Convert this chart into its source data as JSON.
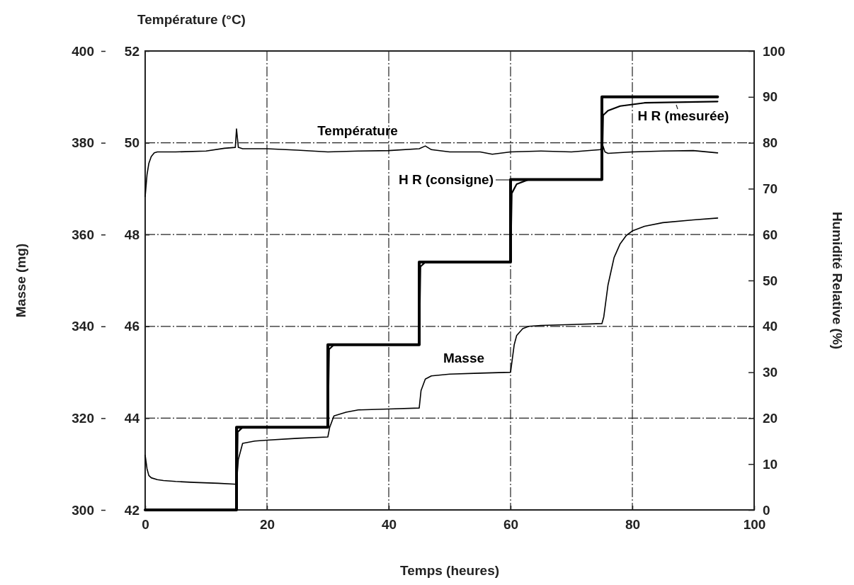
{
  "chart_data": {
    "type": "line",
    "xlabel": "Temps (heures)",
    "ylabel": "Masse  (mg)",
    "y2label": "Humidité Relative (%)",
    "y3label": "Température (°C)",
    "xlim": [
      0,
      100
    ],
    "xticks": [
      0,
      20,
      40,
      60,
      80,
      100
    ],
    "ylim": [
      300,
      400
    ],
    "yticks": [
      300,
      320,
      340,
      360,
      380,
      400
    ],
    "y2lim": [
      0,
      100
    ],
    "y2ticks": [
      0,
      10,
      20,
      30,
      40,
      50,
      60,
      70,
      80,
      90,
      100
    ],
    "y3lim": [
      42,
      52
    ],
    "y3ticks": [
      42,
      44,
      46,
      48,
      50,
      52
    ],
    "grid": true,
    "line_style": "solid",
    "series": [
      {
        "name": "Température",
        "color": "#000000",
        "axis": "y3",
        "x": [
          0,
          0.3,
          0.6,
          1,
          1.5,
          2,
          5,
          10,
          13,
          14.8,
          15,
          15.3,
          16,
          20,
          25,
          30,
          35,
          40,
          45,
          46,
          47,
          50,
          55,
          57,
          60,
          65,
          70,
          74.8,
          75,
          75.5,
          76,
          80,
          85,
          90,
          94
        ],
        "values": [
          48.83,
          49.3,
          49.55,
          49.7,
          49.78,
          49.8,
          49.8,
          49.82,
          49.88,
          49.9,
          50.3,
          49.9,
          49.87,
          49.87,
          49.84,
          49.8,
          49.82,
          49.83,
          49.87,
          49.93,
          49.85,
          49.8,
          49.8,
          49.75,
          49.8,
          49.82,
          49.8,
          49.85,
          50,
          49.8,
          49.77,
          49.8,
          49.82,
          49.83,
          49.78
        ]
      },
      {
        "name": "H R (consigne)",
        "color": "#000000",
        "axis": "y2",
        "x": [
          0,
          15,
          15,
          30,
          30,
          45,
          45,
          60,
          60,
          75,
          75,
          94
        ],
        "values": [
          0,
          0,
          18,
          18,
          36,
          36,
          54,
          54,
          72,
          72,
          90,
          90
        ]
      },
      {
        "name": "H R (mesurée)",
        "color": "#000000",
        "axis": "y2",
        "x": [
          0,
          15,
          15.2,
          16,
          30,
          30.2,
          31,
          45,
          45.2,
          46,
          60,
          60.2,
          61,
          63,
          75,
          75.2,
          76,
          78,
          82,
          94
        ],
        "values": [
          0,
          0,
          17,
          18,
          18,
          35,
          36,
          36,
          53,
          54,
          54,
          69,
          71,
          72,
          72,
          86,
          87,
          88,
          88.7,
          89
        ]
      },
      {
        "name": "Masse",
        "color": "#000000",
        "axis": "y",
        "x": [
          0,
          0.3,
          0.6,
          1,
          2,
          3,
          5,
          8,
          12,
          15,
          15.3,
          16,
          18,
          20,
          25,
          30,
          30.3,
          31,
          33,
          35,
          40,
          45,
          45.3,
          46,
          47,
          50,
          55,
          60,
          60.3,
          60.6,
          61,
          62,
          63,
          65,
          70,
          75,
          75.3,
          75.7,
          76,
          76.5,
          77,
          78,
          79,
          80,
          82,
          85,
          90,
          94
        ],
        "values": [
          311.9,
          309,
          307.5,
          307,
          306.6,
          306.4,
          306.2,
          306,
          305.8,
          305.6,
          311,
          314.5,
          315,
          315.2,
          315.6,
          315.9,
          318,
          320.5,
          321.3,
          321.8,
          322,
          322.2,
          326,
          328.5,
          329.2,
          329.6,
          329.8,
          330,
          333,
          336,
          338,
          339.5,
          340,
          340.2,
          340.4,
          340.6,
          342,
          346,
          349,
          352,
          355,
          358,
          359.8,
          360.8,
          361.8,
          362.6,
          363.2,
          363.6
        ]
      }
    ]
  }
}
